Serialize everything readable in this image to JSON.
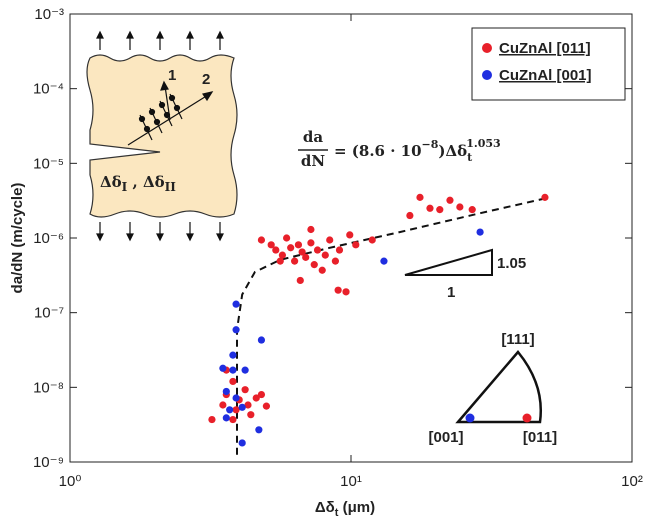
{
  "chart_data": {
    "type": "scatter",
    "xscale": "log",
    "yscale": "log",
    "xlim": [
      1,
      100
    ],
    "ylim": [
      1e-09,
      0.001
    ],
    "xticks": [
      {
        "value": 1,
        "label": "10⁰"
      },
      {
        "value": 10,
        "label": "10¹"
      },
      {
        "value": 100,
        "label": "10²"
      }
    ],
    "yticks": [
      {
        "value": 1e-09,
        "label": "10⁻⁹"
      },
      {
        "value": 1e-08,
        "label": "10⁻⁸"
      },
      {
        "value": 1e-07,
        "label": "10⁻⁷"
      },
      {
        "value": 1e-06,
        "label": "10⁻⁶"
      },
      {
        "value": 1e-05,
        "label": "10⁻⁵"
      },
      {
        "value": 0.0001,
        "label": "10⁻⁴"
      },
      {
        "value": 0.001,
        "label": "10⁻³"
      }
    ],
    "ylabel": "da/dN (m/cycle)",
    "xlabel": [
      "Δδ",
      "t",
      " (μm)"
    ],
    "legend": "upper right",
    "series": [
      {
        "name": "CuZnAl [011]",
        "color": "#e8202a",
        "x": [
          3.2,
          3.5,
          3.6,
          3.8,
          3.9,
          4.0,
          4.2,
          4.3,
          4.4,
          4.6,
          4.8,
          5.0,
          3.6,
          3.8,
          4.8,
          5.2,
          5.4,
          5.7,
          5.9,
          6.1,
          6.3,
          6.5,
          6.7,
          6.9,
          7.2,
          7.4,
          7.6,
          7.9,
          8.1,
          8.4,
          8.8,
          9.1,
          9.6,
          9.9,
          10.4,
          11.9,
          6.6,
          7.2,
          5.6,
          9.0,
          16.2,
          17.6,
          19.1,
          20.7,
          22.5,
          24.4,
          27.0,
          49
        ],
        "values": [
          3.7e-09,
          5.8e-09,
          8e-09,
          1.2e-08,
          5e-09,
          6.8e-09,
          9.3e-09,
          5.8e-09,
          4.3e-09,
          7.2e-09,
          8e-09,
          5.6e-09,
          1.7e-08,
          3.7e-09,
          9.4e-07,
          8.1e-07,
          6.9e-07,
          5.9e-07,
          1e-06,
          7.4e-07,
          4.9e-07,
          8.1e-07,
          6.5e-07,
          5.5e-07,
          8.6e-07,
          4.4e-07,
          6.9e-07,
          3.7e-07,
          5.9e-07,
          9.4e-07,
          4.9e-07,
          6.9e-07,
          1.9e-07,
          1.1e-06,
          8.1e-07,
          9.4e-07,
          2.7e-07,
          1.3e-06,
          4.9e-07,
          2e-07,
          2e-06,
          3.5e-06,
          2.5e-06,
          2.4e-06,
          3.2e-06,
          2.6e-06,
          2.4e-06,
          3.5e-06
        ]
      },
      {
        "name": "CuZnAl [001]",
        "color": "#1f2ee0",
        "x": [
          3.9,
          3.9,
          3.8,
          3.5,
          3.8,
          4.2,
          3.6,
          3.9,
          3.7,
          3.6,
          4.1,
          4.7,
          4.8,
          13.1,
          28.8,
          4.1
        ],
        "values": [
          1.3e-07,
          5.9e-08,
          2.7e-08,
          1.8e-08,
          1.7e-08,
          1.7e-08,
          8.8e-09,
          7.2e-09,
          5e-09,
          3.9e-09,
          1.8e-09,
          2.7e-09,
          4.3e-08,
          4.9e-07,
          1.2e-06,
          5.4e-09
        ]
      }
    ],
    "fit": {
      "color": "#111",
      "style": "dashed",
      "x": [
        3.93,
        3.93,
        4.1,
        4.55,
        5.6,
        8.4,
        14.9,
        28.8,
        51
      ],
      "y": [
        1.25e-09,
        5.9e-08,
        1.75e-07,
        3.5e-07,
        5.1e-07,
        7.4e-07,
        1.2e-06,
        2.15e-06,
        3.5e-06
      ]
    },
    "equation": {
      "numerator": "da",
      "denominator": "dN",
      "coefficient": "= (8.6 · 10",
      "coefficient_exp": "−8",
      "close": ")Δδ",
      "sub": "t",
      "power": "1.053"
    },
    "slope": {
      "rise": "1.05",
      "run": "1"
    },
    "stereo": {
      "top": "[111]",
      "left": "[001]",
      "right": "[011]"
    },
    "inset": {
      "dir1": "1",
      "dir2": "2",
      "label": [
        "Δδ",
        "I",
        " , Δδ",
        "II"
      ]
    }
  }
}
